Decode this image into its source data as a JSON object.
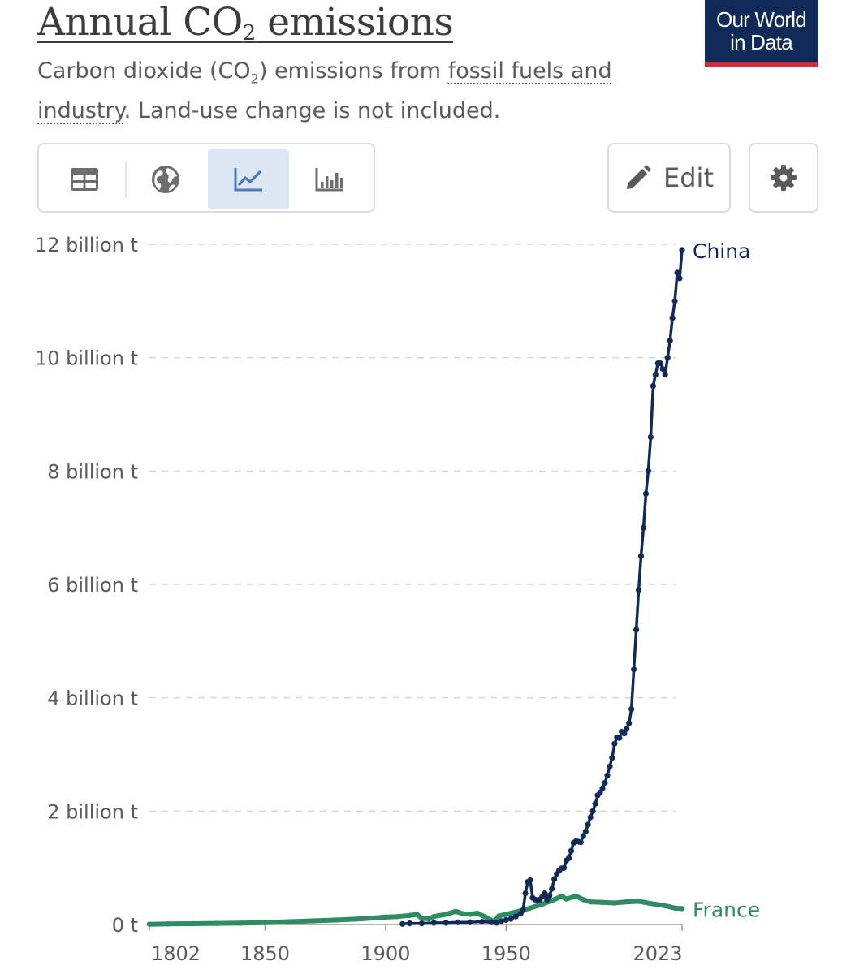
{
  "header": {
    "title_prefix": "Annual CO",
    "title_sub": "2",
    "title_suffix": " emissions",
    "subtitle_prefix": "Carbon dioxide (CO",
    "subtitle_sub": "2",
    "subtitle_mid": ") emissions from ",
    "subtitle_link": "fossil fuels and industry",
    "subtitle_suffix": ". Land-use change is not included."
  },
  "logo": {
    "line1": "Our World",
    "line2": "in Data"
  },
  "toolbar": {
    "tabs": [
      {
        "icon": "table-icon",
        "active": false
      },
      {
        "icon": "globe-icon",
        "active": false
      },
      {
        "icon": "line-chart-icon",
        "active": true
      },
      {
        "icon": "bar-chart-icon",
        "active": false
      }
    ],
    "edit_label": "Edit",
    "edit_icon": "pencil-icon",
    "settings_icon": "gear-icon"
  },
  "colors": {
    "china": "#0f2a56",
    "france": "#2e8b62",
    "grid": "#d6d6d6",
    "axis_text": "#5b5b5b"
  },
  "chart_data": {
    "type": "line",
    "xlim": [
      1802,
      2023
    ],
    "ylim": [
      0,
      12
    ],
    "y_unit": "billion t",
    "x_ticks": [
      1802,
      1850,
      1900,
      1950,
      2023
    ],
    "y_ticks": [
      {
        "value": 0,
        "label": "0 t"
      },
      {
        "value": 2,
        "label": "2 billion t"
      },
      {
        "value": 4,
        "label": "4 billion t"
      },
      {
        "value": 6,
        "label": "6 billion t"
      },
      {
        "value": 8,
        "label": "8 billion t"
      },
      {
        "value": 10,
        "label": "10 billion t"
      },
      {
        "value": 12,
        "label": "12 billion t"
      }
    ],
    "grid": "horizontal-dashed",
    "legend": "end-of-line labels",
    "series": [
      {
        "name": "China",
        "color": "#0f2a56",
        "points": [
          [
            1907,
            0.01
          ],
          [
            1910,
            0.02
          ],
          [
            1915,
            0.02
          ],
          [
            1920,
            0.03
          ],
          [
            1925,
            0.03
          ],
          [
            1930,
            0.04
          ],
          [
            1935,
            0.04
          ],
          [
            1940,
            0.05
          ],
          [
            1944,
            0.04
          ],
          [
            1946,
            0.03
          ],
          [
            1948,
            0.06
          ],
          [
            1950,
            0.08
          ],
          [
            1952,
            0.1
          ],
          [
            1954,
            0.14
          ],
          [
            1956,
            0.19
          ],
          [
            1957,
            0.25
          ],
          [
            1958,
            0.55
          ],
          [
            1959,
            0.75
          ],
          [
            1960,
            0.78
          ],
          [
            1961,
            0.47
          ],
          [
            1962,
            0.44
          ],
          [
            1963,
            0.43
          ],
          [
            1964,
            0.44
          ],
          [
            1965,
            0.49
          ],
          [
            1966,
            0.55
          ],
          [
            1967,
            0.44
          ],
          [
            1968,
            0.51
          ],
          [
            1969,
            0.63
          ],
          [
            1970,
            0.8
          ],
          [
            1971,
            0.89
          ],
          [
            1972,
            0.95
          ],
          [
            1973,
            0.99
          ],
          [
            1974,
            1.0
          ],
          [
            1975,
            1.13
          ],
          [
            1976,
            1.17
          ],
          [
            1977,
            1.3
          ],
          [
            1978,
            1.44
          ],
          [
            1979,
            1.47
          ],
          [
            1980,
            1.46
          ],
          [
            1981,
            1.45
          ],
          [
            1982,
            1.56
          ],
          [
            1983,
            1.64
          ],
          [
            1984,
            1.76
          ],
          [
            1985,
            1.89
          ],
          [
            1986,
            2.0
          ],
          [
            1987,
            2.13
          ],
          [
            1988,
            2.28
          ],
          [
            1989,
            2.33
          ],
          [
            1990,
            2.4
          ],
          [
            1991,
            2.5
          ],
          [
            1992,
            2.63
          ],
          [
            1993,
            2.79
          ],
          [
            1994,
            2.94
          ],
          [
            1995,
            3.19
          ],
          [
            1996,
            3.3
          ],
          [
            1997,
            3.29
          ],
          [
            1998,
            3.4
          ],
          [
            1999,
            3.37
          ],
          [
            2000,
            3.45
          ],
          [
            2001,
            3.55
          ],
          [
            2002,
            3.8
          ],
          [
            2003,
            4.5
          ],
          [
            2004,
            5.2
          ],
          [
            2005,
            5.9
          ],
          [
            2006,
            6.5
          ],
          [
            2007,
            7.0
          ],
          [
            2008,
            7.6
          ],
          [
            2009,
            8.0
          ],
          [
            2010,
            8.6
          ],
          [
            2011,
            9.5
          ],
          [
            2012,
            9.7
          ],
          [
            2013,
            9.9
          ],
          [
            2014,
            9.9
          ],
          [
            2015,
            9.8
          ],
          [
            2016,
            9.7
          ],
          [
            2017,
            10.0
          ],
          [
            2018,
            10.3
          ],
          [
            2019,
            10.7
          ],
          [
            2020,
            11.0
          ],
          [
            2021,
            11.5
          ],
          [
            2022,
            11.4
          ],
          [
            2023,
            11.9
          ]
        ]
      },
      {
        "name": "France",
        "color": "#2e8b62",
        "points": [
          [
            1802,
            0.005
          ],
          [
            1810,
            0.01
          ],
          [
            1820,
            0.015
          ],
          [
            1830,
            0.02
          ],
          [
            1840,
            0.025
          ],
          [
            1850,
            0.035
          ],
          [
            1860,
            0.05
          ],
          [
            1870,
            0.065
          ],
          [
            1880,
            0.08
          ],
          [
            1890,
            0.1
          ],
          [
            1900,
            0.13
          ],
          [
            1905,
            0.14
          ],
          [
            1910,
            0.16
          ],
          [
            1913,
            0.18
          ],
          [
            1915,
            0.11
          ],
          [
            1918,
            0.1
          ],
          [
            1920,
            0.14
          ],
          [
            1925,
            0.18
          ],
          [
            1929,
            0.23
          ],
          [
            1930,
            0.22
          ],
          [
            1932,
            0.19
          ],
          [
            1935,
            0.18
          ],
          [
            1938,
            0.2
          ],
          [
            1940,
            0.16
          ],
          [
            1942,
            0.12
          ],
          [
            1944,
            0.07
          ],
          [
            1945,
            0.06
          ],
          [
            1947,
            0.15
          ],
          [
            1950,
            0.18
          ],
          [
            1955,
            0.23
          ],
          [
            1960,
            0.29
          ],
          [
            1965,
            0.36
          ],
          [
            1970,
            0.44
          ],
          [
            1973,
            0.5
          ],
          [
            1975,
            0.45
          ],
          [
            1979,
            0.5
          ],
          [
            1982,
            0.44
          ],
          [
            1985,
            0.4
          ],
          [
            1990,
            0.39
          ],
          [
            1995,
            0.38
          ],
          [
            2000,
            0.4
          ],
          [
            2005,
            0.41
          ],
          [
            2010,
            0.37
          ],
          [
            2015,
            0.34
          ],
          [
            2020,
            0.29
          ],
          [
            2023,
            0.28
          ]
        ]
      }
    ]
  }
}
